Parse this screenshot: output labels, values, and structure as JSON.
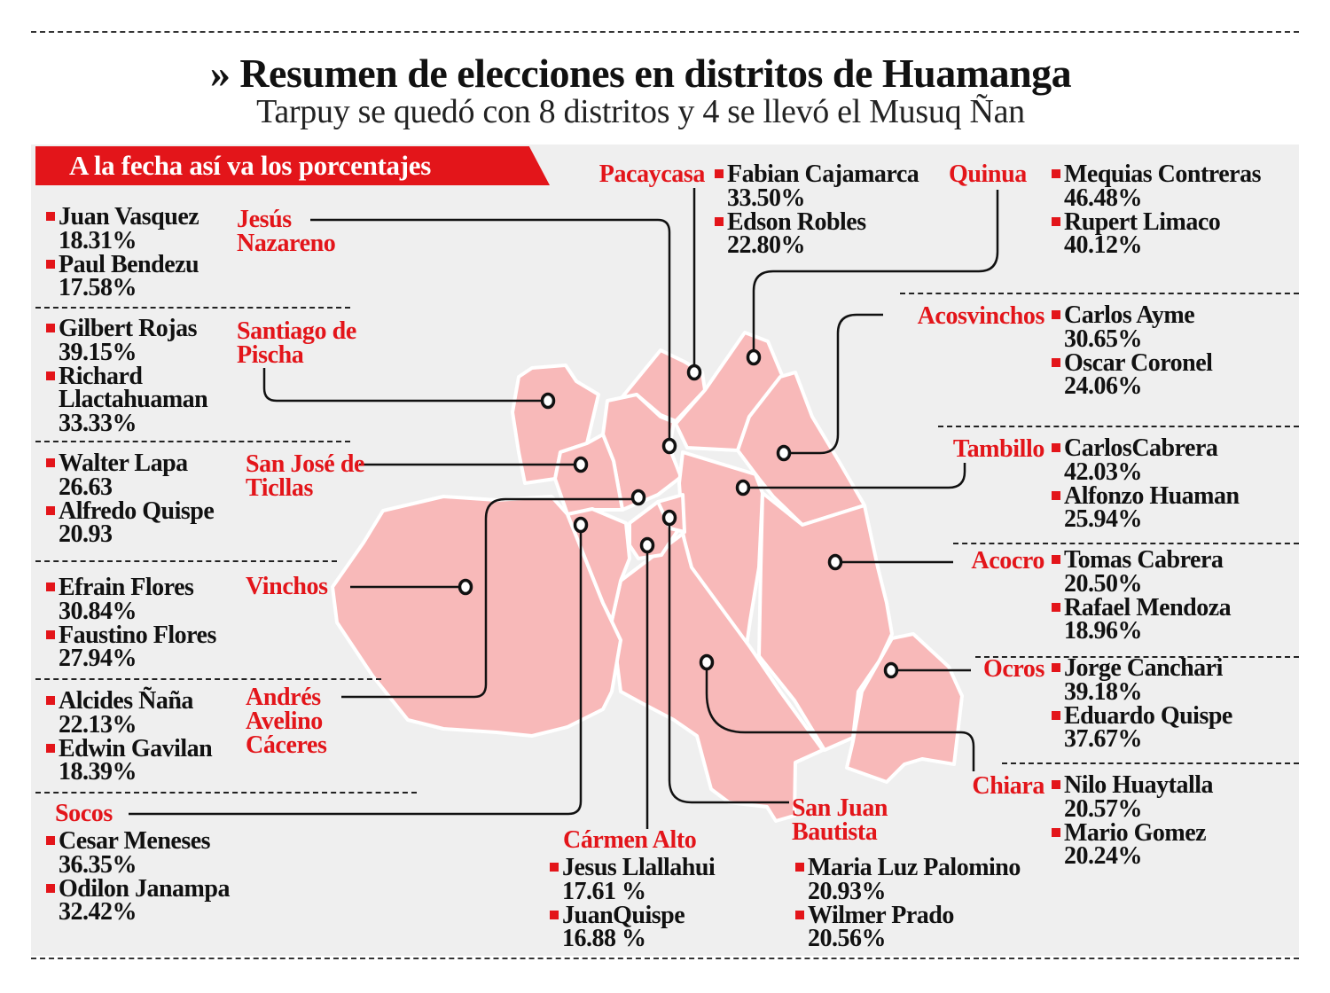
{
  "header": {
    "title": "» Resumen de elecciones en distritos de Huamanga",
    "subtitle": "Tarpuy se quedó con 8 distritos y 4 se llevó el Musuq Ñan"
  },
  "banner": "A la fecha así va los porcentajes",
  "colors": {
    "accent": "#e3151a",
    "map_fill": "#f8b9b9",
    "panel": "#efefef"
  },
  "districts": [
    {
      "label": "Jesús Nazareno",
      "candidates": [
        {
          "name": "Juan Vasquez",
          "pct": "18.31%"
        },
        {
          "name": "Paul Bendezu",
          "pct": "17.58%"
        }
      ]
    },
    {
      "label": "Santiago de Pischa",
      "candidates": [
        {
          "name": "Gilbert Rojas",
          "pct": "39.15%"
        },
        {
          "name": "Richard Llactahuaman",
          "pct": "33.33%"
        }
      ]
    },
    {
      "label": "San José de Ticllas",
      "candidates": [
        {
          "name": "Walter Lapa",
          "pct": "26.63"
        },
        {
          "name": "Alfredo Quispe",
          "pct": "20.93"
        }
      ]
    },
    {
      "label": "Vinchos",
      "candidates": [
        {
          "name": "Efrain Flores",
          "pct": "30.84%"
        },
        {
          "name": "Faustino Flores",
          "pct": "27.94%"
        }
      ]
    },
    {
      "label": "Andrés Avelino Cáceres",
      "candidates": [
        {
          "name": "Alcides Ñaña",
          "pct": "22.13%"
        },
        {
          "name": "Edwin Gavilan",
          "pct": "18.39%"
        }
      ]
    },
    {
      "label": "Socos",
      "candidates": [
        {
          "name": "Cesar Meneses",
          "pct": "36.35%"
        },
        {
          "name": "Odilon Janampa",
          "pct": "32.42%"
        }
      ]
    },
    {
      "label": "Cármen Alto",
      "candidates": [
        {
          "name": "Jesus Llallahui",
          "pct": "17.61 %"
        },
        {
          "name": "JuanQuispe",
          "pct": "16.88 %"
        }
      ]
    },
    {
      "label": "San Juan Bautista",
      "candidates": [
        {
          "name": "Maria Luz Palomino",
          "pct": "20.93%"
        },
        {
          "name": "Wilmer Prado",
          "pct": "20.56%"
        }
      ]
    },
    {
      "label": "Pacaycasa",
      "candidates": [
        {
          "name": "Fabian Cajamarca",
          "pct": "33.50%"
        },
        {
          "name": "Edson Robles",
          "pct": "22.80%"
        }
      ]
    },
    {
      "label": "Quinua",
      "candidates": [
        {
          "name": "Mequias Contreras",
          "pct": "46.48%"
        },
        {
          "name": "Rupert Limaco",
          "pct": "40.12%"
        }
      ]
    },
    {
      "label": "Acosvinchos",
      "candidates": [
        {
          "name": "Carlos Ayme",
          "pct": "30.65%"
        },
        {
          "name": "Oscar Coronel",
          "pct": "24.06%"
        }
      ]
    },
    {
      "label": "Tambillo",
      "candidates": [
        {
          "name": "CarlosCabrera",
          "pct": "42.03%"
        },
        {
          "name": "Alfonzo Huaman",
          "pct": "25.94%"
        }
      ]
    },
    {
      "label": "Acocro",
      "candidates": [
        {
          "name": "Tomas Cabrera",
          "pct": "20.50%"
        },
        {
          "name": "Rafael Mendoza",
          "pct": "18.96%"
        }
      ]
    },
    {
      "label": "Ocros",
      "candidates": [
        {
          "name": "Jorge Canchari",
          "pct": "39.18%"
        },
        {
          "name": "Eduardo Quispe",
          "pct": "37.67%"
        }
      ]
    },
    {
      "label": "Chiara",
      "candidates": [
        {
          "name": "Nilo Huaytalla",
          "pct": "20.57%"
        },
        {
          "name": "Mario Gomez",
          "pct": "20.24%"
        }
      ]
    }
  ]
}
